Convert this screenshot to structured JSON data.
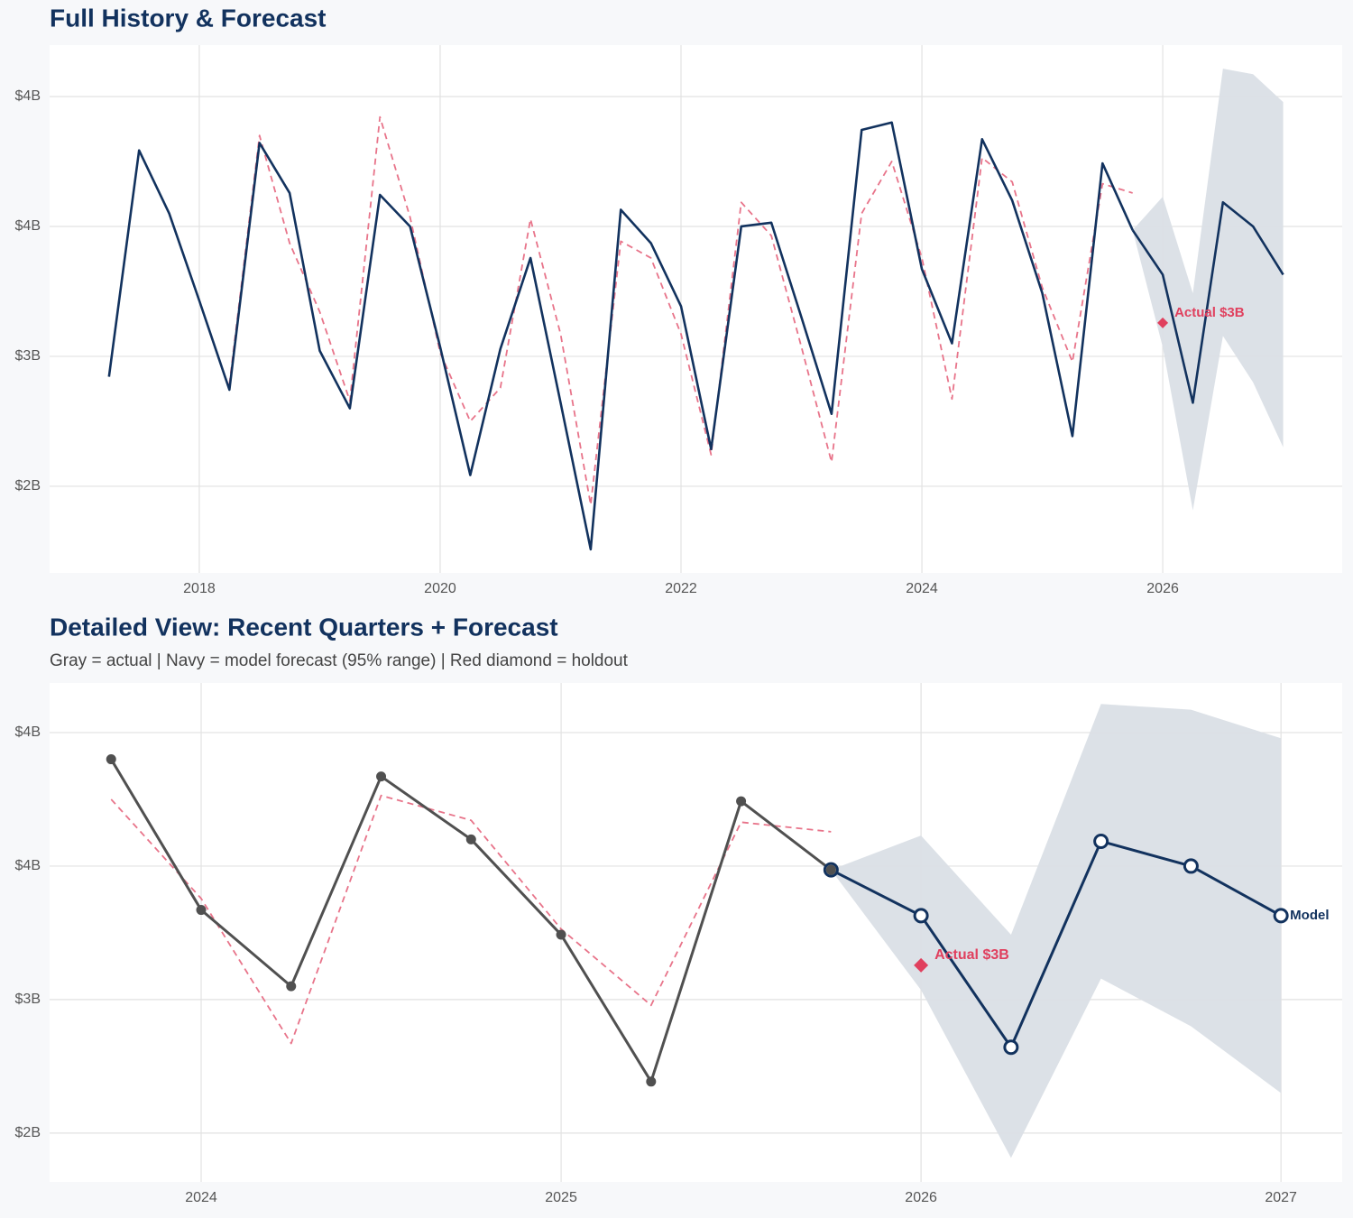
{
  "chart_data": [
    {
      "type": "line",
      "title": "Full History & Forecast",
      "xlim": [
        2016.757,
        2027.49
      ],
      "ylim": [
        1.833,
        4.677
      ],
      "xticks": [
        2018,
        2020,
        2022,
        2024,
        2026
      ],
      "yticks": [
        {
          "value": 4.4,
          "label": "$4B"
        },
        {
          "value": 3.7,
          "label": "$4B"
        },
        {
          "value": 3.0,
          "label": "$3B"
        },
        {
          "value": 2.3,
          "label": "$2B"
        }
      ],
      "grid": true,
      "series": [
        {
          "color": "#e8748a",
          "dash": true,
          "x": [
            2018.25,
            2018.5,
            2018.75,
            2019,
            2019.25,
            2019.5,
            2019.75,
            2020,
            2020.25,
            2020.5,
            2020.75,
            2021,
            2021.25,
            2021.5,
            2021.75,
            2022,
            2022.25,
            2022.5,
            2022.75,
            2023,
            2023.25,
            2023.5,
            2023.75,
            2024,
            2024.25,
            2024.5,
            2024.75,
            2025,
            2025.25,
            2025.5,
            2025.75
          ],
          "values": [
            2.85,
            4.19,
            3.61,
            3.24,
            2.76,
            4.29,
            3.75,
            3.02,
            2.65,
            2.83,
            3.74,
            3.12,
            2.2,
            3.62,
            3.53,
            3.12,
            2.47,
            3.83,
            3.65,
            3.05,
            2.43,
            3.77,
            4.05,
            3.53,
            2.77,
            4.07,
            3.94,
            3.37,
            2.97,
            3.93,
            3.88
          ]
        },
        {
          "color": "#12325e",
          "x": [
            2017.25,
            2017.5,
            2017.75,
            2018,
            2018.25,
            2018.5,
            2018.75,
            2019,
            2019.25,
            2019.5,
            2019.75,
            2020,
            2020.25,
            2020.5,
            2020.75,
            2021,
            2021.25,
            2021.5,
            2021.75,
            2022,
            2022.25,
            2022.5,
            2022.75,
            2023,
            2023.25,
            2023.5,
            2023.75,
            2024,
            2024.25,
            2024.5,
            2024.75,
            2025,
            2025.25,
            2025.5,
            2025.75
          ],
          "values": [
            2.89,
            4.11,
            3.77,
            3.3,
            2.82,
            4.15,
            3.88,
            3.03,
            2.72,
            3.87,
            3.7,
            3.05,
            2.36,
            3.04,
            3.53,
            2.75,
            1.96,
            3.79,
            3.61,
            3.27,
            2.5,
            3.7,
            3.72,
            3.21,
            2.69,
            4.22,
            4.26,
            3.47,
            3.07,
            4.17,
            3.84,
            3.34,
            2.57,
            4.04,
            3.68
          ]
        },
        {
          "color": "#12325e",
          "x": [
            2025.75,
            2026,
            2026.25,
            2026.5,
            2026.75,
            2027
          ],
          "values": [
            3.68,
            3.44,
            2.75,
            3.83,
            3.7,
            3.44
          ]
        }
      ],
      "band": {
        "color": "#dadfe6",
        "x": [
          2025.75,
          2026,
          2026.25,
          2026.5,
          2026.75,
          2027
        ],
        "upper": [
          3.68,
          3.86,
          3.34,
          4.55,
          4.52,
          4.37
        ],
        "lower": [
          3.68,
          3.05,
          2.17,
          3.11,
          2.86,
          2.51
        ]
      },
      "holdout": {
        "x": 2026,
        "value": 3.18,
        "label": "Actual $3B",
        "color": "#e0405e"
      }
    },
    {
      "type": "line",
      "title": "Detailed View: Recent Quarters + Forecast",
      "subtitle": "Gray = actual  |  Navy = model forecast (95% range)  |  Red diamond = holdout",
      "xlim": [
        2023.579,
        2027.17
      ],
      "ylim": [
        2.044,
        4.66
      ],
      "xticks": [
        2024,
        2025,
        2026,
        2027
      ],
      "yticks": [
        {
          "value": 4.4,
          "label": "$4B"
        },
        {
          "value": 3.7,
          "label": "$4B"
        },
        {
          "value": 3.0,
          "label": "$3B"
        },
        {
          "value": 2.3,
          "label": "$2B"
        }
      ],
      "grid": true,
      "series": [
        {
          "color": "#e8748a",
          "dash": true,
          "x": [
            2023.75,
            2024,
            2024.25,
            2024.5,
            2024.75,
            2025,
            2025.25,
            2025.5,
            2025.75
          ],
          "values": [
            4.05,
            3.53,
            2.77,
            4.07,
            3.94,
            3.37,
            2.97,
            3.93,
            3.88
          ]
        },
        {
          "name": "Model",
          "color": "#12325e",
          "markers": "hollow",
          "x": [
            2025.75,
            2026,
            2026.25,
            2026.5,
            2026.75,
            2027
          ],
          "values": [
            3.68,
            3.44,
            2.75,
            3.83,
            3.7,
            3.44
          ]
        },
        {
          "color": "#505050",
          "markers": "filled",
          "x": [
            2023.75,
            2024,
            2024.25,
            2024.5,
            2024.75,
            2025,
            2025.25,
            2025.5,
            2025.75
          ],
          "values": [
            4.26,
            3.47,
            3.07,
            4.17,
            3.84,
            3.34,
            2.57,
            4.04,
            3.68
          ]
        }
      ],
      "band": {
        "color": "#dadfe6",
        "x": [
          2025.75,
          2026,
          2026.25,
          2026.5,
          2026.75,
          2027
        ],
        "upper": [
          3.68,
          3.86,
          3.34,
          4.55,
          4.52,
          4.37
        ],
        "lower": [
          3.68,
          3.05,
          2.17,
          3.11,
          2.86,
          2.51
        ]
      },
      "holdout": {
        "x": 2026,
        "value": 3.18,
        "label": "Actual $3B",
        "color": "#e0405e"
      }
    }
  ]
}
